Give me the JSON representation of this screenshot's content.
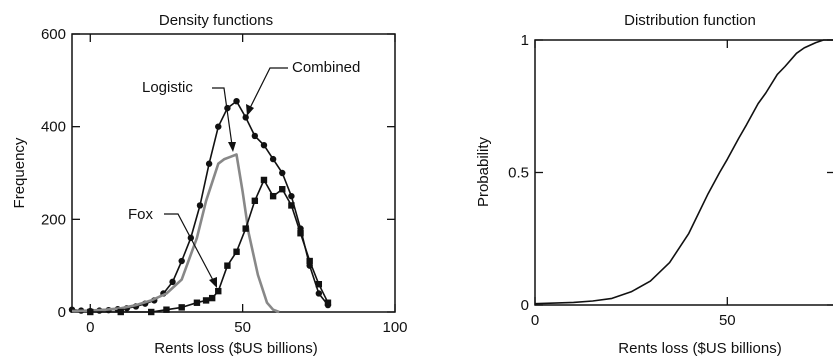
{
  "chart_data": [
    {
      "type": "line",
      "title": "Density functions",
      "xlabel": "Rents loss ($US billions)",
      "ylabel": "Frequency",
      "xlim": [
        -6,
        100
      ],
      "ylim": [
        0,
        600
      ],
      "xticks": [
        0,
        50,
        100
      ],
      "yticks": [
        0,
        200,
        400,
        600
      ],
      "grid": false,
      "series": [
        {
          "name": "Combined",
          "color": "#111111",
          "marker": "circle",
          "x": [
            -6,
            -3,
            0,
            3,
            6,
            9,
            12,
            15,
            18,
            21,
            24,
            27,
            30,
            33,
            36,
            39,
            42,
            45,
            48,
            51,
            54,
            57,
            60,
            63,
            66,
            69,
            72,
            75,
            78
          ],
          "y": [
            5,
            3,
            2,
            3,
            4,
            6,
            8,
            12,
            18,
            25,
            40,
            65,
            110,
            160,
            230,
            320,
            400,
            440,
            455,
            420,
            380,
            360,
            330,
            300,
            250,
            180,
            100,
            40,
            15
          ]
        },
        {
          "name": "Logistic",
          "color": "#888888",
          "marker": "none",
          "x": [
            -6,
            0,
            5,
            10,
            15,
            20,
            25,
            30,
            35,
            38,
            40,
            42,
            44,
            46,
            48,
            50,
            52,
            55,
            58,
            60,
            62
          ],
          "y": [
            2,
            3,
            5,
            8,
            15,
            25,
            40,
            70,
            160,
            240,
            280,
            320,
            330,
            335,
            340,
            260,
            170,
            80,
            20,
            5,
            0
          ]
        },
        {
          "name": "Fox",
          "color": "#111111",
          "marker": "square",
          "x": [
            0,
            10,
            20,
            25,
            30,
            35,
            38,
            40,
            42,
            45,
            48,
            51,
            54,
            57,
            60,
            63,
            66,
            69,
            72,
            75,
            78
          ],
          "y": [
            0,
            0,
            0,
            5,
            10,
            20,
            25,
            30,
            45,
            100,
            130,
            180,
            240,
            285,
            250,
            265,
            230,
            170,
            110,
            60,
            20
          ]
        }
      ],
      "annotations": [
        "Logistic",
        "Combined",
        "Fox"
      ]
    },
    {
      "type": "line",
      "title": "Distribution function",
      "xlabel": "Rents loss ($US billions)",
      "ylabel": "Probability",
      "xlim": [
        0,
        78
      ],
      "ylim": [
        0,
        1
      ],
      "xticks": [
        0,
        50
      ],
      "yticks": [
        0,
        0.5,
        1
      ],
      "ytick_labels": [
        "0",
        "0.5",
        "1"
      ],
      "grid": false,
      "series": [
        {
          "color": "#111111",
          "x": [
            0,
            5,
            10,
            15,
            20,
            25,
            30,
            35,
            40,
            45,
            48,
            50,
            53,
            55,
            58,
            60,
            63,
            65,
            68,
            70,
            73,
            75,
            78
          ],
          "y": [
            0.005,
            0.007,
            0.01,
            0.015,
            0.025,
            0.05,
            0.09,
            0.16,
            0.27,
            0.42,
            0.5,
            0.55,
            0.63,
            0.68,
            0.76,
            0.8,
            0.87,
            0.9,
            0.95,
            0.97,
            0.99,
            1.0,
            1.0
          ]
        }
      ]
    }
  ]
}
